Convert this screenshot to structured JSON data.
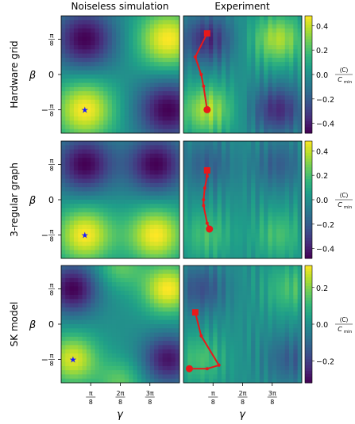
{
  "figure": {
    "column_titles": [
      "Noiseless simulation",
      "Experiment"
    ],
    "row_titles": [
      "Hardware grid",
      "3-regular graph",
      "SK model"
    ],
    "y_axis_symbol": "β",
    "x_axis_symbol": "γ",
    "colorbar_label_top": "⟨C⟩",
    "colorbar_label_bottom": "C",
    "colorbar_label_sub": "min",
    "colorbar_prefix": "0.0",
    "y_ticks": [
      {
        "num": "π",
        "den": "8",
        "sign": ""
      },
      {
        "num": "",
        "den": "",
        "sign": "0"
      },
      {
        "num": "π",
        "den": "8",
        "sign": "−"
      }
    ],
    "x_ticks": [
      {
        "num": "π",
        "den": "8"
      },
      {
        "num": "2π",
        "den": "8"
      },
      {
        "num": "3π",
        "den": "8"
      }
    ],
    "colormap": "viridis",
    "colors": {
      "star": "#1a1aff",
      "path": "#e8191a"
    }
  },
  "chart_data": [
    {
      "type": "heatmap",
      "row": "Hardware grid",
      "colorbar_ticks": [
        "0.4",
        "0.2",
        "0.0",
        "−0.2",
        "−0.4"
      ],
      "colorbar_range": [
        -0.48,
        0.48
      ],
      "simulation": {
        "blobs": [
          [
            0.2,
            0.8,
            -1,
            0.18
          ],
          [
            0.9,
            0.8,
            1,
            0.18
          ],
          [
            0.2,
            0.2,
            1,
            0.18
          ],
          [
            0.9,
            0.2,
            -1,
            0.18
          ]
        ],
        "optimum_star": [
          0.2,
          0.2
        ]
      },
      "experiment": {
        "blobs": [
          [
            0.2,
            0.8,
            -0.75,
            0.15
          ],
          [
            0.8,
            0.8,
            0.75,
            0.15
          ],
          [
            0.2,
            0.2,
            0.75,
            0.15
          ],
          [
            0.8,
            0.2,
            -0.75,
            0.15
          ]
        ],
        "path": [
          [
            0.2,
            0.85
          ],
          [
            0.1,
            0.65
          ],
          [
            0.15,
            0.5
          ],
          [
            0.17,
            0.4
          ],
          [
            0.2,
            0.2
          ]
        ]
      }
    },
    {
      "type": "heatmap",
      "row": "3-regular graph",
      "colorbar_ticks": [
        "0.4",
        "0.2",
        "0.0",
        "−0.2",
        "−0.4"
      ],
      "colorbar_range": [
        -0.48,
        0.48
      ],
      "simulation": {
        "blobs": [
          [
            0.2,
            0.8,
            -1,
            0.17
          ],
          [
            0.8,
            0.8,
            -1,
            0.17
          ],
          [
            0.2,
            0.2,
            1,
            0.17
          ],
          [
            0.8,
            0.2,
            1,
            0.17
          ]
        ],
        "optimum_star": [
          0.2,
          0.2
        ]
      },
      "experiment": {
        "blobs": [
          [
            0.2,
            0.8,
            -0.4,
            0.15
          ],
          [
            0.8,
            0.8,
            -0.4,
            0.15
          ],
          [
            0.2,
            0.2,
            0.4,
            0.15
          ],
          [
            0.8,
            0.2,
            0.4,
            0.15
          ]
        ],
        "path": [
          [
            0.2,
            0.75
          ],
          [
            0.2,
            0.7
          ],
          [
            0.18,
            0.6
          ],
          [
            0.17,
            0.5
          ],
          [
            0.17,
            0.45
          ],
          [
            0.2,
            0.3
          ],
          [
            0.22,
            0.25
          ]
        ]
      }
    },
    {
      "type": "heatmap",
      "row": "SK model",
      "colorbar_ticks": [
        "0.2",
        "0.0",
        "−0.2"
      ],
      "colorbar_range": [
        -0.32,
        0.32
      ],
      "simulation": {
        "blobs": [
          [
            0.1,
            0.8,
            -1,
            0.15
          ],
          [
            0.1,
            0.2,
            0.9,
            0.15
          ],
          [
            0.5,
            1.0,
            0.5,
            0.14
          ],
          [
            0.5,
            0.0,
            0.5,
            0.14
          ],
          [
            0.9,
            0.8,
            1,
            0.15
          ],
          [
            0.9,
            0.2,
            -0.9,
            0.15
          ]
        ],
        "optimum_star": [
          0.1,
          0.2
        ]
      },
      "experiment": {
        "blobs": [
          [
            0.15,
            0.8,
            -0.5,
            0.15
          ],
          [
            0.15,
            0.2,
            0.4,
            0.15
          ],
          [
            0.9,
            0.8,
            0.4,
            0.15
          ],
          [
            0.9,
            0.2,
            -0.4,
            0.15
          ]
        ],
        "path": [
          [
            0.1,
            0.6
          ],
          [
            0.15,
            0.4
          ],
          [
            0.3,
            0.15
          ],
          [
            0.2,
            0.12
          ],
          [
            0.05,
            0.12
          ]
        ]
      }
    }
  ]
}
